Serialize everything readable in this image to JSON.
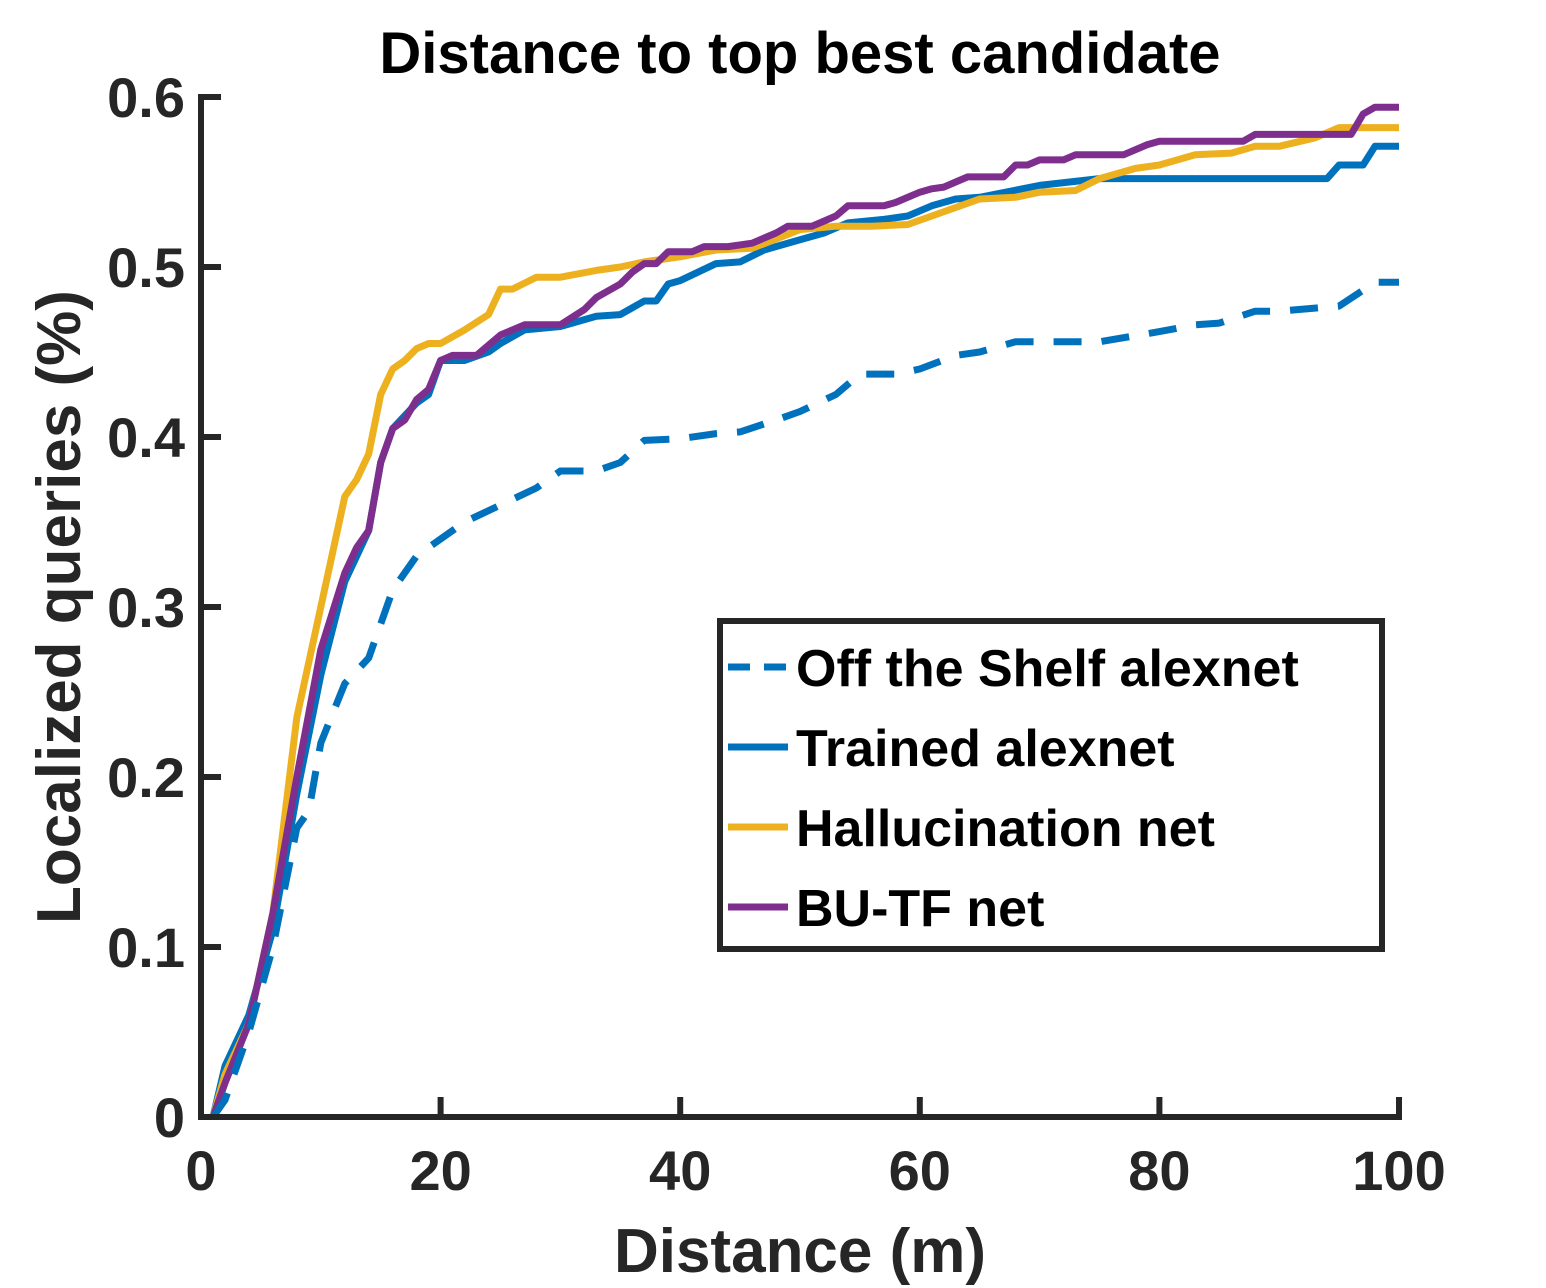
{
  "chart_data": {
    "type": "line",
    "title": "Distance to top best candidate",
    "xlabel": "Distance (m)",
    "ylabel": "Localized queries (%)",
    "xlim": [
      0,
      100
    ],
    "ylim": [
      0,
      0.6
    ],
    "xticks": [
      0,
      20,
      40,
      60,
      80,
      100
    ],
    "xtick_labels": [
      "0",
      "20",
      "40",
      "60",
      "80",
      "100"
    ],
    "yticks": [
      0,
      0.1,
      0.2,
      0.3,
      0.4,
      0.5,
      0.6
    ],
    "ytick_labels": [
      "0",
      "0.1",
      "0.2",
      "0.3",
      "0.4",
      "0.5",
      "0.6"
    ],
    "grid": false,
    "legend_position": "lower-right",
    "series": [
      {
        "name": "Off the Shelf alexnet",
        "color": "#0072BD",
        "dash": "dashed",
        "x": [
          1,
          2,
          4,
          6,
          8,
          9,
          10,
          12,
          14,
          16,
          18,
          20,
          22,
          25,
          28,
          30,
          33,
          35,
          37,
          40,
          43,
          45,
          48,
          50,
          53,
          55,
          58,
          60,
          63,
          65,
          68,
          70,
          75,
          80,
          83,
          85,
          88,
          90,
          95,
          98,
          100
        ],
        "y": [
          0,
          0.01,
          0.05,
          0.1,
          0.17,
          0.18,
          0.22,
          0.255,
          0.27,
          0.31,
          0.33,
          0.34,
          0.35,
          0.36,
          0.37,
          0.38,
          0.38,
          0.385,
          0.398,
          0.399,
          0.402,
          0.403,
          0.41,
          0.415,
          0.425,
          0.437,
          0.437,
          0.44,
          0.448,
          0.45,
          0.456,
          0.456,
          0.456,
          0.462,
          0.466,
          0.467,
          0.474,
          0.474,
          0.477,
          0.491,
          0.491
        ]
      },
      {
        "name": "Trained alexnet",
        "color": "#0072BD",
        "dash": "solid",
        "x": [
          1,
          2,
          4,
          6,
          8,
          10,
          12,
          14,
          15,
          16,
          18,
          19,
          20,
          21,
          22,
          24,
          25,
          27,
          30,
          33,
          35,
          37,
          38,
          39,
          40,
          43,
          45,
          47,
          50,
          52,
          54,
          57,
          59,
          61,
          63,
          65,
          70,
          75,
          80,
          85,
          90,
          94,
          95,
          97,
          98,
          100
        ],
        "y": [
          0,
          0.03,
          0.06,
          0.11,
          0.19,
          0.26,
          0.315,
          0.345,
          0.385,
          0.405,
          0.42,
          0.425,
          0.445,
          0.445,
          0.445,
          0.45,
          0.455,
          0.463,
          0.465,
          0.471,
          0.472,
          0.48,
          0.48,
          0.49,
          0.492,
          0.502,
          0.503,
          0.51,
          0.516,
          0.52,
          0.526,
          0.528,
          0.53,
          0.536,
          0.54,
          0.541,
          0.548,
          0.552,
          0.552,
          0.552,
          0.552,
          0.552,
          0.56,
          0.56,
          0.571,
          0.571
        ]
      },
      {
        "name": "Hallucination net",
        "color": "#EDB120",
        "dash": "solid",
        "x": [
          1,
          2,
          4,
          6,
          8,
          10,
          12,
          13,
          14,
          15,
          16,
          17,
          18,
          19,
          20,
          22,
          24,
          25,
          26,
          28,
          30,
          33,
          35,
          37,
          40,
          43,
          46,
          50,
          53,
          56,
          59,
          61,
          63,
          65,
          68,
          70,
          73,
          75,
          78,
          80,
          83,
          86,
          88,
          90,
          93,
          95,
          98,
          100
        ],
        "y": [
          0,
          0.025,
          0.055,
          0.12,
          0.235,
          0.3,
          0.365,
          0.375,
          0.39,
          0.425,
          0.44,
          0.445,
          0.452,
          0.455,
          0.455,
          0.463,
          0.472,
          0.487,
          0.487,
          0.494,
          0.494,
          0.498,
          0.5,
          0.503,
          0.506,
          0.51,
          0.511,
          0.522,
          0.524,
          0.524,
          0.525,
          0.53,
          0.535,
          0.54,
          0.541,
          0.544,
          0.545,
          0.552,
          0.558,
          0.56,
          0.566,
          0.567,
          0.571,
          0.571,
          0.576,
          0.582,
          0.582,
          0.582
        ]
      },
      {
        "name": "BU-TF net",
        "color": "#7E2F8E",
        "dash": "solid",
        "x": [
          1,
          2,
          4,
          6,
          8,
          10,
          12,
          13,
          14,
          15,
          16,
          17,
          18,
          19,
          20,
          21,
          23,
          25,
          27,
          29,
          30,
          32,
          33,
          35,
          36,
          37,
          38,
          39,
          41,
          42,
          44,
          46,
          48,
          49,
          51,
          52,
          53,
          54,
          57,
          58,
          60,
          61,
          62,
          63,
          64,
          66,
          67,
          68,
          69,
          70,
          72,
          73,
          75,
          77,
          79,
          80,
          83,
          86,
          87,
          88,
          90,
          93,
          96,
          97,
          98,
          100
        ],
        "y": [
          0,
          0.02,
          0.055,
          0.12,
          0.2,
          0.275,
          0.32,
          0.335,
          0.345,
          0.385,
          0.405,
          0.41,
          0.422,
          0.428,
          0.445,
          0.448,
          0.448,
          0.46,
          0.466,
          0.466,
          0.466,
          0.475,
          0.482,
          0.49,
          0.497,
          0.502,
          0.502,
          0.509,
          0.509,
          0.512,
          0.512,
          0.514,
          0.52,
          0.524,
          0.524,
          0.527,
          0.53,
          0.536,
          0.536,
          0.538,
          0.544,
          0.546,
          0.547,
          0.55,
          0.553,
          0.553,
          0.553,
          0.56,
          0.56,
          0.563,
          0.563,
          0.566,
          0.566,
          0.566,
          0.572,
          0.574,
          0.574,
          0.574,
          0.574,
          0.578,
          0.578,
          0.578,
          0.578,
          0.59,
          0.594,
          0.594
        ]
      }
    ]
  }
}
